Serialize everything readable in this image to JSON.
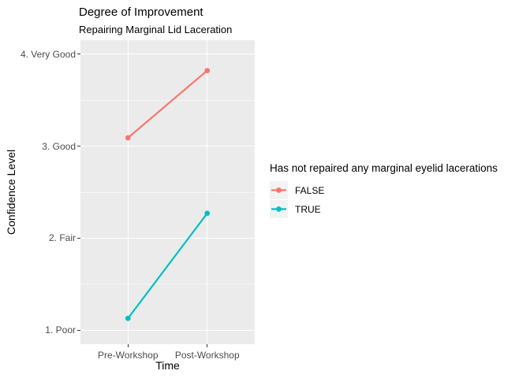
{
  "chart_data": {
    "type": "line",
    "title": "Degree of Improvement",
    "subtitle": "Repairing Marginal Lid Laceration",
    "xlabel": "Time",
    "ylabel": "Confidence Level",
    "categories": [
      "Pre-Workshop",
      "Post-Workshop"
    ],
    "y_ticks": [
      {
        "value": 1,
        "label": "1. Poor"
      },
      {
        "value": 2,
        "label": "2. Fair"
      },
      {
        "value": 3,
        "label": "3. Good"
      },
      {
        "value": 4,
        "label": "4. Very Good"
      }
    ],
    "ylim": [
      0.85,
      4.15
    ],
    "grid": {
      "horizontal": "major-and-minor",
      "vertical": "major-only",
      "color": "#FFFFFF"
    },
    "panel_background": "#EBEBEB",
    "tick_color": "#333333",
    "axis_text_color": "#4D4D4D",
    "legend": {
      "position": "right",
      "title": "Has not repaired any marginal eyelid lacerations",
      "key_background": "#F2F2F2"
    },
    "series": [
      {
        "name": "FALSE",
        "color": "#F8766D",
        "values": [
          3.09,
          3.82
        ]
      },
      {
        "name": "TRUE",
        "color": "#00BFC4",
        "values": [
          1.13,
          2.27
        ]
      }
    ]
  }
}
